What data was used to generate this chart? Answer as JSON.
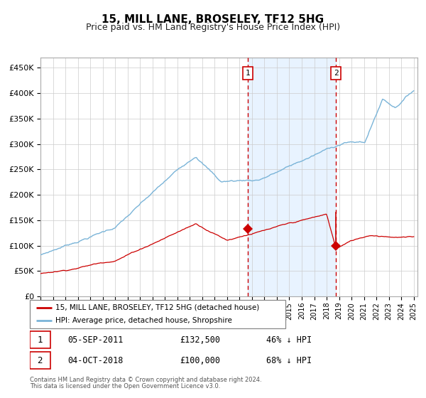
{
  "title": "15, MILL LANE, BROSELEY, TF12 5HG",
  "subtitle": "Price paid vs. HM Land Registry's House Price Index (HPI)",
  "legend_line1": "15, MILL LANE, BROSELEY, TF12 5HG (detached house)",
  "legend_line2": "HPI: Average price, detached house, Shropshire",
  "event1_label": "1",
  "event1_date": "05-SEP-2011",
  "event1_price": "£132,500",
  "event1_pct": "46% ↓ HPI",
  "event2_label": "2",
  "event2_date": "04-OCT-2018",
  "event2_price": "£100,000",
  "event2_pct": "68% ↓ HPI",
  "footer1": "Contains HM Land Registry data © Crown copyright and database right 2024.",
  "footer2": "This data is licensed under the Open Government Licence v3.0.",
  "hpi_color": "#7ab4d8",
  "price_color": "#cc0000",
  "event_vline_color": "#cc0000",
  "shade_color": "#ddeeff",
  "grid_color": "#cccccc",
  "bg_color": "#ffffff",
  "ylim": [
    0,
    470000
  ],
  "yticks": [
    0,
    50000,
    100000,
    150000,
    200000,
    250000,
    300000,
    350000,
    400000,
    450000
  ],
  "event1_year": 2011.67,
  "event2_year": 2018.75,
  "event1_price_val": 132500,
  "event2_price_val": 100000
}
